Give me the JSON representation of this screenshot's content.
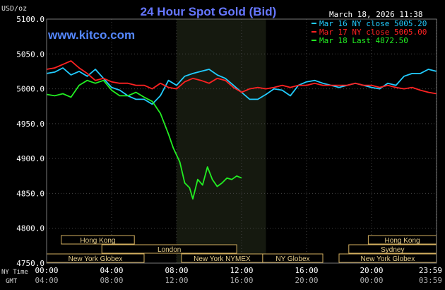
{
  "chart_data": {
    "type": "line",
    "title": "24 Hour Spot Gold (Bid)",
    "timestamp": "March 18, 2026 11:38",
    "watermark": "www.kitco.com",
    "ylabel": "USD/oz",
    "ylim": [
      4750,
      5100
    ],
    "yticks": [
      "5100.0",
      "5050.0",
      "5000.0",
      "4950.0",
      "4900.0",
      "4850.0",
      "4800.0",
      "4750.0"
    ],
    "ytick_values": [
      5100,
      5050,
      5000,
      4950,
      4900,
      4850,
      4800,
      4750
    ],
    "xlim": [
      0,
      24
    ],
    "x_row_label_1": "NY Time",
    "x_row_label_2": "GMT",
    "xticks_ny": [
      "00:00",
      "04:00",
      "08:00",
      "12:00",
      "16:00",
      "20:00",
      "23:59"
    ],
    "xticks_gmt": [
      "04:00",
      "08:00",
      "12:00",
      "16:00",
      "20:00",
      "00:00",
      "03:59"
    ],
    "xtick_values": [
      0,
      4,
      8,
      12,
      16,
      20,
      23.98
    ],
    "highlight_band_hours": [
      8,
      13.5
    ],
    "legend_position": "top-right",
    "series": [
      {
        "name": "Mar 16 NY close 5005.20",
        "color": "#22ccff",
        "x": [
          0,
          0.5,
          1,
          1.5,
          2,
          2.5,
          3,
          3.5,
          4,
          4.5,
          5,
          5.5,
          6,
          6.5,
          7,
          7.5,
          8,
          8.5,
          9,
          9.5,
          10,
          10.5,
          11,
          11.5,
          12,
          12.5,
          13,
          13.5,
          14,
          14.5,
          15,
          15.5,
          16,
          16.5,
          17,
          17.5,
          18,
          18.5,
          19,
          19.5,
          20,
          20.5,
          21,
          21.5,
          22,
          22.5,
          23,
          23.5,
          24
        ],
        "values": [
          5022,
          5024,
          5030,
          5020,
          5025,
          5018,
          5028,
          5015,
          5002,
          4998,
          4990,
          4985,
          4985,
          4978,
          4990,
          5012,
          5005,
          5018,
          5022,
          5025,
          5028,
          5020,
          5015,
          5005,
          4995,
          4985,
          4985,
          4992,
          5000,
          4998,
          4990,
          5005,
          5010,
          5012,
          5008,
          5005,
          5002,
          5005,
          5008,
          5005,
          5002,
          5000,
          5008,
          5005,
          5018,
          5022,
          5022,
          5028,
          5025
        ]
      },
      {
        "name": "Mar 17 NY close 5005.00",
        "color": "#ff2222",
        "x": [
          0,
          0.5,
          1,
          1.5,
          2,
          2.5,
          3,
          3.5,
          4,
          4.5,
          5,
          5.5,
          6,
          6.5,
          7,
          7.5,
          8,
          8.5,
          9,
          9.5,
          10,
          10.5,
          11,
          11.5,
          12,
          12.5,
          13,
          13.5,
          14,
          14.5,
          15,
          15.5,
          16,
          16.5,
          17,
          17.5,
          18,
          18.5,
          19,
          19.5,
          20,
          20.5,
          21,
          21.5,
          22,
          22.5,
          23,
          23.5,
          24
        ],
        "values": [
          5028,
          5030,
          5035,
          5040,
          5030,
          5022,
          5012,
          5015,
          5010,
          5008,
          5008,
          5005,
          5005,
          5000,
          5008,
          5002,
          5000,
          5010,
          5015,
          5012,
          5008,
          5015,
          5012,
          5002,
          4995,
          5000,
          5002,
          5000,
          5002,
          5005,
          5002,
          5005,
          5005,
          5008,
          5005,
          5005,
          5005,
          5005,
          5008,
          5005,
          5005,
          5002,
          5005,
          5002,
          5000,
          5002,
          4998,
          4995,
          4993
        ]
      },
      {
        "name": "Mar 18 Last 4872.50",
        "color": "#22ee22",
        "x": [
          0,
          0.5,
          1,
          1.5,
          2,
          2.5,
          3,
          3.5,
          4,
          4.5,
          5,
          5.5,
          6,
          6.5,
          7,
          7.5,
          7.8,
          8,
          8.2,
          8.5,
          8.8,
          9,
          9.3,
          9.6,
          9.9,
          10.2,
          10.5,
          10.8,
          11.1,
          11.4,
          11.7,
          12
        ],
        "values": [
          4992,
          4990,
          4993,
          4988,
          5005,
          5012,
          5008,
          5012,
          4998,
          4990,
          4990,
          4995,
          4988,
          4982,
          4965,
          4935,
          4915,
          4905,
          4895,
          4865,
          4858,
          4842,
          4870,
          4862,
          4888,
          4870,
          4860,
          4865,
          4872,
          4870,
          4875,
          4872
        ]
      }
    ],
    "sessions": [
      {
        "label": "Hong Kong",
        "start": 0.9,
        "end": 5.4,
        "row": 1
      },
      {
        "label": "Hong Kong",
        "start": 19.8,
        "end": 23.99,
        "row": 1
      },
      {
        "label": "London",
        "start": 3.4,
        "end": 11.7,
        "row": 2
      },
      {
        "label": "Sydney",
        "start": 18.6,
        "end": 23.99,
        "row": 2
      },
      {
        "label": "New York Globex",
        "start": 0,
        "end": 6.0,
        "row": 3
      },
      {
        "label": "New York NYMEX",
        "start": 8.3,
        "end": 13.3,
        "row": 3
      },
      {
        "label": "NY Globex",
        "start": 13.3,
        "end": 17.0,
        "row": 3
      },
      {
        "label": "New York Globex",
        "start": 18.0,
        "end": 23.99,
        "row": 3
      }
    ]
  }
}
